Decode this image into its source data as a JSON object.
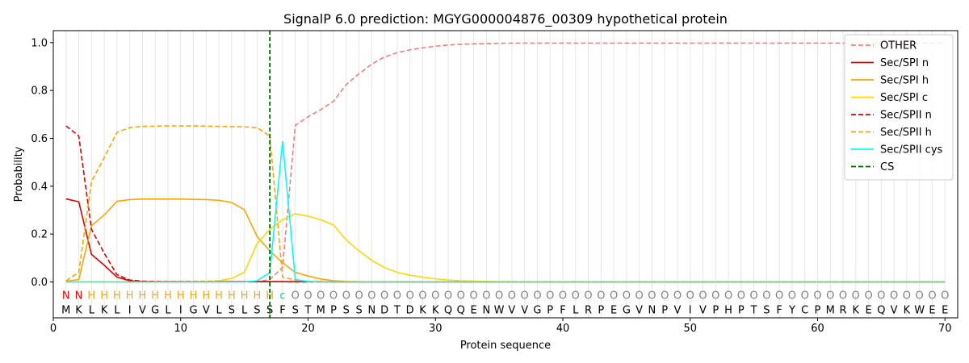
{
  "chart_data": {
    "type": "line",
    "title": "SignalP 6.0 prediction: MGYG000004876_00309 hypothetical protein",
    "xlabel": "Protein sequence",
    "ylabel": "Probability",
    "xlim": [
      0,
      71
    ],
    "ylim": [
      -0.15,
      1.05
    ],
    "xticks": [
      0,
      10,
      20,
      30,
      40,
      50,
      60,
      70
    ],
    "yticks": [
      0.0,
      0.2,
      0.4,
      0.6,
      0.8,
      1.0
    ],
    "ytick_labels": [
      "0.0",
      "0.2",
      "0.4",
      "0.6",
      "0.8",
      "1.0"
    ],
    "legend_position": "top-right",
    "vertical_gridlines": "one per residue",
    "sequence": [
      "M",
      "K",
      "L",
      "K",
      "L",
      "I",
      "V",
      "G",
      "L",
      "I",
      "G",
      "V",
      "L",
      "S",
      "L",
      "S",
      "S",
      "F",
      "S",
      "T",
      "M",
      "P",
      "S",
      "S",
      "N",
      "D",
      "T",
      "D",
      "K",
      "K",
      "Q",
      "Q",
      "E",
      "N",
      "W",
      "V",
      "V",
      "G",
      "P",
      "F",
      "L",
      "R",
      "P",
      "E",
      "G",
      "V",
      "N",
      "P",
      "V",
      "I",
      "V",
      "P",
      "H",
      "P",
      "T",
      "S",
      "F",
      "Y",
      "C",
      "P",
      "M",
      "R",
      "K",
      "E",
      "Q",
      "V",
      "K",
      "W",
      "E",
      "E"
    ],
    "region_labels": [
      "N",
      "N",
      "H",
      "H",
      "H",
      "H",
      "H",
      "H",
      "H",
      "H",
      "H",
      "H",
      "H",
      "H",
      "H",
      "H",
      "H",
      "c",
      "O",
      "O",
      "O",
      "O",
      "O",
      "O",
      "O",
      "O",
      "O",
      "O",
      "O",
      "O",
      "O",
      "O",
      "O",
      "O",
      "O",
      "O",
      "O",
      "O",
      "O",
      "O",
      "O",
      "O",
      "O",
      "O",
      "O",
      "O",
      "O",
      "O",
      "O",
      "O",
      "O",
      "O",
      "O",
      "O",
      "O",
      "O",
      "O",
      "O",
      "O",
      "O",
      "O",
      "O",
      "O",
      "O",
      "O",
      "O",
      "O",
      "O",
      "O",
      "O"
    ],
    "region_colors": {
      "N": "#ff0000",
      "H": "#ffa500",
      "c": "#00c8c8",
      "O": "#808080"
    },
    "cs_position": 17,
    "series": [
      {
        "name": "OTHER",
        "color": "#f08080",
        "dash": true,
        "values": [
          0.0,
          0.0,
          0.0,
          0.0,
          0.0,
          0.0,
          0.0,
          0.0,
          0.0,
          0.0,
          0.0,
          0.0,
          0.0,
          0.0,
          0.0,
          0.0,
          0.01,
          0.06,
          0.655,
          0.69,
          0.72,
          0.755,
          0.825,
          0.87,
          0.91,
          0.94,
          0.958,
          0.97,
          0.978,
          0.985,
          0.99,
          0.993,
          0.995,
          0.996,
          0.997,
          0.998,
          0.998,
          0.998,
          0.998,
          0.998,
          0.998,
          0.998,
          0.998,
          0.998,
          0.998,
          0.998,
          0.998,
          0.998,
          0.998,
          0.998,
          0.998,
          0.998,
          0.998,
          0.998,
          0.998,
          0.998,
          0.998,
          0.998,
          0.998,
          0.998,
          0.998,
          0.998,
          0.998,
          0.998,
          0.998,
          0.998,
          0.998,
          0.998,
          0.998,
          0.998
        ]
      },
      {
        "name": "Sec/SPI n",
        "color": "#e00000",
        "dash": false,
        "values": [
          0.347,
          0.335,
          0.115,
          0.07,
          0.02,
          0.005,
          0.002,
          0.001,
          0.001,
          0.001,
          0.001,
          0.001,
          0.001,
          0.001,
          0.001,
          0.001,
          0.001,
          0.001,
          0.001,
          0.001,
          0.001,
          0.0,
          0.0,
          0.0,
          0.0,
          0.0,
          0.0,
          0.0,
          0.0,
          0.0,
          0.0,
          0.0,
          0.0,
          0.0,
          0.0,
          0.0,
          0.0,
          0.0,
          0.0,
          0.0,
          0.0,
          0.0,
          0.0,
          0.0,
          0.0,
          0.0,
          0.0,
          0.0,
          0.0,
          0.0,
          0.0,
          0.0,
          0.0,
          0.0,
          0.0,
          0.0,
          0.0,
          0.0,
          0.0,
          0.0,
          0.0,
          0.0,
          0.0,
          0.0,
          0.0,
          0.0,
          0.0,
          0.0,
          0.0,
          0.0
        ]
      },
      {
        "name": "Sec/SPI h",
        "color": "#ffa500",
        "dash": false,
        "values": [
          0.003,
          0.01,
          0.235,
          0.28,
          0.337,
          0.344,
          0.346,
          0.346,
          0.346,
          0.346,
          0.345,
          0.344,
          0.341,
          0.332,
          0.302,
          0.19,
          0.13,
          0.08,
          0.04,
          0.025,
          0.012,
          0.005,
          0.002,
          0.001,
          0.0,
          0.0,
          0.0,
          0.0,
          0.0,
          0.0,
          0.0,
          0.0,
          0.0,
          0.0,
          0.0,
          0.0,
          0.0,
          0.0,
          0.0,
          0.0,
          0.0,
          0.0,
          0.0,
          0.0,
          0.0,
          0.0,
          0.0,
          0.0,
          0.0,
          0.0,
          0.0,
          0.0,
          0.0,
          0.0,
          0.0,
          0.0,
          0.0,
          0.0,
          0.0,
          0.0,
          0.0,
          0.0,
          0.0,
          0.0,
          0.0,
          0.0,
          0.0,
          0.0,
          0.0,
          0.0
        ]
      },
      {
        "name": "Sec/SPI c",
        "color": "#ffd700",
        "dash": false,
        "values": [
          0.0,
          0.0,
          0.0,
          0.0,
          0.0,
          0.0,
          0.0,
          0.0,
          0.0,
          0.0,
          0.001,
          0.002,
          0.005,
          0.015,
          0.04,
          0.16,
          0.22,
          0.26,
          0.285,
          0.275,
          0.26,
          0.238,
          0.175,
          0.13,
          0.09,
          0.06,
          0.04,
          0.028,
          0.02,
          0.013,
          0.008,
          0.005,
          0.003,
          0.002,
          0.001,
          0.001,
          0.0,
          0.0,
          0.0,
          0.0,
          0.0,
          0.0,
          0.0,
          0.0,
          0.0,
          0.0,
          0.0,
          0.0,
          0.0,
          0.0,
          0.0,
          0.0,
          0.0,
          0.0,
          0.0,
          0.0,
          0.0,
          0.0,
          0.0,
          0.0,
          0.0,
          0.0,
          0.0,
          0.0,
          0.0,
          0.0,
          0.0,
          0.0,
          0.0,
          0.0
        ]
      },
      {
        "name": "Sec/SPII n",
        "color": "#e00000",
        "dash": true,
        "values": [
          0.652,
          0.61,
          0.22,
          0.12,
          0.03,
          0.008,
          0.003,
          0.002,
          0.001,
          0.001,
          0.001,
          0.001,
          0.001,
          0.001,
          0.001,
          0.001,
          0.001,
          0.001,
          0.0,
          0.0,
          0.0,
          0.0,
          0.0,
          0.0,
          0.0,
          0.0,
          0.0,
          0.0,
          0.0,
          0.0,
          0.0,
          0.0,
          0.0,
          0.0,
          0.0,
          0.0,
          0.0,
          0.0,
          0.0,
          0.0,
          0.0,
          0.0,
          0.0,
          0.0,
          0.0,
          0.0,
          0.0,
          0.0,
          0.0,
          0.0,
          0.0,
          0.0,
          0.0,
          0.0,
          0.0,
          0.0,
          0.0,
          0.0,
          0.0,
          0.0,
          0.0,
          0.0,
          0.0,
          0.0,
          0.0,
          0.0,
          0.0,
          0.0,
          0.0,
          0.0
        ]
      },
      {
        "name": "Sec/SPII h",
        "color": "#ffa500",
        "dash": true,
        "values": [
          0.005,
          0.04,
          0.42,
          0.52,
          0.625,
          0.645,
          0.65,
          0.651,
          0.652,
          0.652,
          0.652,
          0.651,
          0.65,
          0.649,
          0.648,
          0.645,
          0.61,
          0.02,
          0.008,
          0.003,
          0.001,
          0.0,
          0.0,
          0.0,
          0.0,
          0.0,
          0.0,
          0.0,
          0.0,
          0.0,
          0.0,
          0.0,
          0.0,
          0.0,
          0.0,
          0.0,
          0.0,
          0.0,
          0.0,
          0.0,
          0.0,
          0.0,
          0.0,
          0.0,
          0.0,
          0.0,
          0.0,
          0.0,
          0.0,
          0.0,
          0.0,
          0.0,
          0.0,
          0.0,
          0.0,
          0.0,
          0.0,
          0.0,
          0.0,
          0.0,
          0.0,
          0.0,
          0.0,
          0.0,
          0.0,
          0.0,
          0.0,
          0.0,
          0.0,
          0.0
        ]
      },
      {
        "name": "Sec/SPII cys",
        "color": "#00ffff",
        "dash": false,
        "values": [
          0.0,
          0.0,
          0.0,
          0.0,
          0.0,
          0.0,
          0.0,
          0.0,
          0.0,
          0.0,
          0.0,
          0.0,
          0.0,
          0.0,
          0.0,
          0.005,
          0.04,
          0.588,
          0.01,
          0.002,
          0.0,
          0.0,
          0.0,
          0.0,
          0.0,
          0.0,
          0.0,
          0.0,
          0.0,
          0.0,
          0.0,
          0.0,
          0.0,
          0.0,
          0.0,
          0.0,
          0.0,
          0.0,
          0.0,
          0.0,
          0.0,
          0.0,
          0.0,
          0.0,
          0.0,
          0.0,
          0.0,
          0.0,
          0.0,
          0.0,
          0.0,
          0.0,
          0.0,
          0.0,
          0.0,
          0.0,
          0.0,
          0.0,
          0.0,
          0.0,
          0.0,
          0.0,
          0.0,
          0.0,
          0.0,
          0.0,
          0.0,
          0.0,
          0.0,
          0.0
        ]
      }
    ],
    "cs_series": {
      "name": "CS",
      "color": "#006400",
      "dash": true
    }
  }
}
